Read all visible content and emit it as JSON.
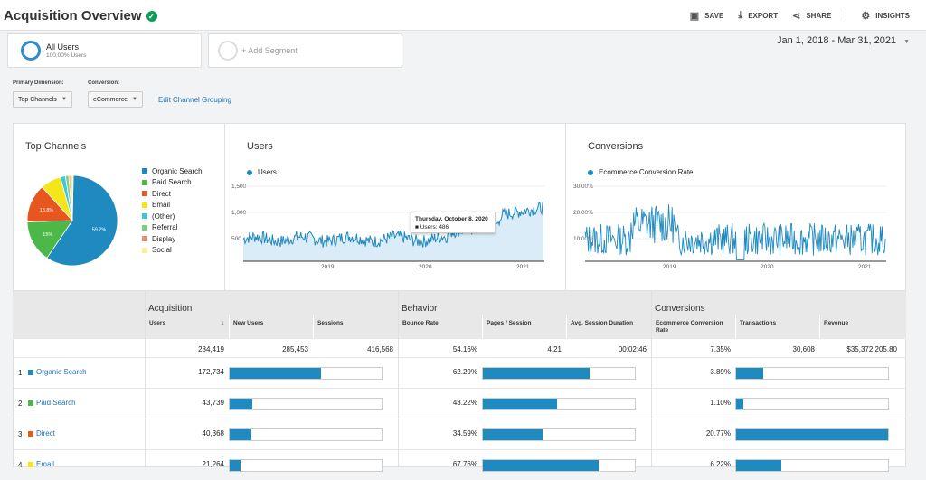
{
  "header": {
    "title": "Acquisition Overview",
    "actions": {
      "save": "SAVE",
      "export": "EXPORT",
      "share": "SHARE",
      "insights": "INSIGHTS"
    }
  },
  "segments": {
    "active_name": "All Users",
    "active_sub": "100.00% Users",
    "add_label": "+ Add Segment"
  },
  "date_range": "Jan 1, 2018 - Mar 31, 2021",
  "controls": {
    "primary_dimension_label": "Primary Dimension:",
    "primary_dimension_value": "Top Channels",
    "conversion_label": "Conversion:",
    "conversion_value": "eCommerce",
    "edit_grouping": "Edit Channel Grouping"
  },
  "top_channels": {
    "title": "Top Channels",
    "legend": [
      {
        "name": "Organic Search",
        "color": "#1f8ac0"
      },
      {
        "name": "Paid Search",
        "color": "#4cb848"
      },
      {
        "name": "Direct",
        "color": "#e8561f"
      },
      {
        "name": "Email",
        "color": "#f4e61a"
      },
      {
        "name": "(Other)",
        "color": "#3fc6de"
      },
      {
        "name": "Referral",
        "color": "#7fcf7a"
      },
      {
        "name": "Display",
        "color": "#e5937a"
      },
      {
        "name": "Social",
        "color": "#f7ee9a"
      }
    ]
  },
  "chart_data": [
    {
      "type": "pie",
      "title": "Top Channels",
      "categories": [
        "Organic Search",
        "Paid Search",
        "Direct",
        "Email",
        "(Other)",
        "Referral",
        "Display",
        "Social"
      ],
      "values": [
        59.2,
        15.0,
        13.8,
        7.4,
        1.8,
        1.2,
        0.6,
        1.0
      ],
      "slice_labels": [
        "59.2%",
        "15%",
        "13.8%",
        "",
        "",
        "",
        "",
        ""
      ]
    },
    {
      "type": "line",
      "title": "Users",
      "series": [
        {
          "name": "Users"
        }
      ],
      "y_ticks": [
        "1,500",
        "1,000",
        "500"
      ],
      "x_ticks": [
        "2019",
        "2020",
        "2021"
      ],
      "ylim": [
        0,
        1500
      ],
      "tooltip": {
        "date": "Thursday, October 8, 2020",
        "label": "Users",
        "value": 486
      }
    },
    {
      "type": "line",
      "title": "Conversions",
      "series": [
        {
          "name": "Ecommerce Conversion Rate"
        }
      ],
      "y_ticks": [
        "30.00%",
        "20.00%",
        "10.00%"
      ],
      "x_ticks": [
        "2019",
        "2020",
        "2021"
      ],
      "ylim": [
        0,
        30
      ]
    }
  ],
  "users_panel": {
    "title": "Users",
    "series_label": "Users",
    "y1": "1,500",
    "y2": "1,000",
    "y3": "500",
    "x1": "2019",
    "x2": "2020",
    "x3": "2021",
    "tooltip_date": "Thursday, October 8, 2020",
    "tooltip_value": "Users: 486"
  },
  "conv_panel": {
    "title": "Conversions",
    "series_label": "Ecommerce Conversion Rate",
    "y1": "30.00%",
    "y2": "20.00%",
    "y3": "10.00%",
    "x1": "2019",
    "x2": "2020",
    "x3": "2021"
  },
  "pie_labels": {
    "organic": "59.2%",
    "paid": "15%",
    "direct": "13.8%"
  },
  "table": {
    "groups": {
      "acquisition": "Acquisition",
      "behavior": "Behavior",
      "conversions": "Conversions"
    },
    "columns": {
      "users": "Users",
      "new_users": "New Users",
      "sessions": "Sessions",
      "bounce_rate": "Bounce Rate",
      "pages_session": "Pages / Session",
      "avg_duration": "Avg. Session Duration",
      "conv_rate": "Ecommerce Conversion Rate",
      "transactions": "Transactions",
      "revenue": "Revenue"
    },
    "totals": {
      "users": "284,419",
      "new_users": "285,453",
      "sessions": "416,568",
      "bounce_rate": "54.16%",
      "pages_session": "4.21",
      "avg_duration": "00:02:46",
      "conv_rate": "7.35%",
      "transactions": "30,608",
      "revenue": "$35,372,205.80"
    },
    "rows": [
      {
        "num": "1",
        "channel": "Organic Search",
        "color": "#1f8ac0",
        "users": "172,734",
        "bounce_rate": "62.29%",
        "conv_rate": "3.89%",
        "new_users_share": 0.6,
        "pages_share": 0.7,
        "transactions_share": 0.18
      },
      {
        "num": "2",
        "channel": "Paid Search",
        "color": "#4cb848",
        "users": "43,739",
        "bounce_rate": "43.22%",
        "conv_rate": "1.10%",
        "new_users_share": 0.15,
        "pages_share": 0.49,
        "transactions_share": 0.05
      },
      {
        "num": "3",
        "channel": "Direct",
        "color": "#e8561f",
        "users": "40,368",
        "bounce_rate": "34.59%",
        "conv_rate": "20.77%",
        "new_users_share": 0.14,
        "pages_share": 0.39,
        "transactions_share": 1.0
      },
      {
        "num": "4",
        "channel": "Email",
        "color": "#f4e61a",
        "users": "21,264",
        "bounce_rate": "67.76%",
        "conv_rate": "6.22%",
        "new_users_share": 0.07,
        "pages_share": 0.76,
        "transactions_share": 0.3
      }
    ]
  }
}
